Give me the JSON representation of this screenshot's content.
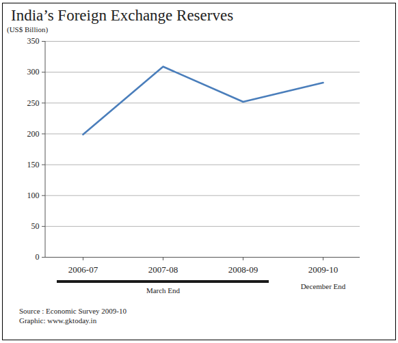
{
  "chart_data": {
    "type": "line",
    "title": "India’s Foreign Exchange Reserves",
    "y_label": "(US$ Billion)",
    "categories": [
      "2006-07",
      "2007-08",
      "2008-09",
      "2009-10"
    ],
    "values": [
      199,
      309,
      252,
      283
    ],
    "color": "#4a7ebb",
    "ylim": [
      0,
      350
    ],
    "yticks": [
      0,
      50,
      100,
      150,
      200,
      250,
      300,
      350
    ],
    "grid": true,
    "annotations": [
      "March End",
      "December End"
    ],
    "caption": [
      "Source : Economic Survey 2009-10",
      "Graphic: www.gktoday.in"
    ]
  }
}
